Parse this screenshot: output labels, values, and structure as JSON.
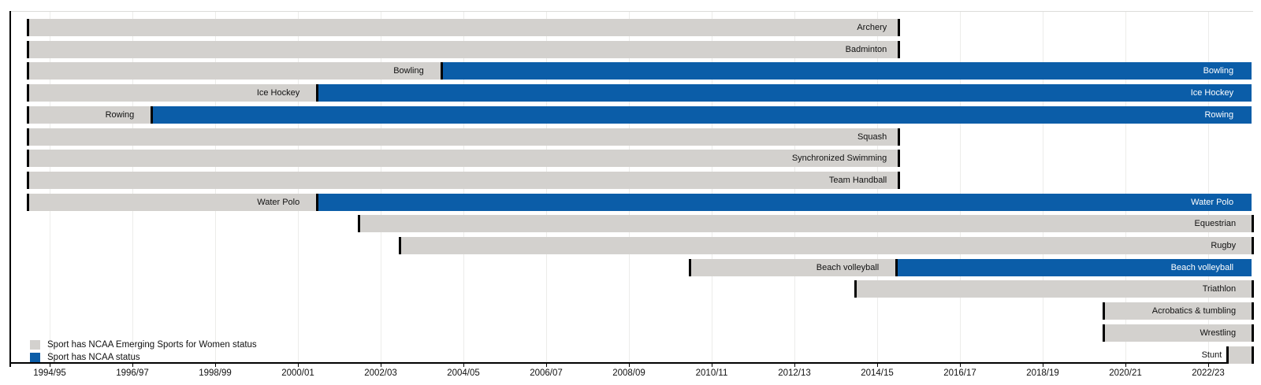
{
  "chart_data": {
    "type": "gantt",
    "description": "Timeline of NCAA Emerging Sports for Women status and NCAA championship status by sport and academic year",
    "colors": {
      "emerging": "#d3d1ce",
      "ncaa": "#0b5da8",
      "boundary": "#000000",
      "gridline": "#ececea",
      "background": "#ffffff"
    },
    "x_axis": {
      "range_start": 1994,
      "range_end": 2023.55,
      "grid": true,
      "ticks": [
        {
          "year": 1994.5,
          "label": "1994/95"
        },
        {
          "year": 1996.5,
          "label": "1996/97"
        },
        {
          "year": 1998.5,
          "label": "1998/99"
        },
        {
          "year": 2000.5,
          "label": "2000/01"
        },
        {
          "year": 2002.5,
          "label": "2002/03"
        },
        {
          "year": 2004.5,
          "label": "2004/05"
        },
        {
          "year": 2006.5,
          "label": "2006/07"
        },
        {
          "year": 2008.5,
          "label": "2008/09"
        },
        {
          "year": 2010.5,
          "label": "2010/11"
        },
        {
          "year": 2012.5,
          "label": "2012/13"
        },
        {
          "year": 2014.5,
          "label": "2014/15"
        },
        {
          "year": 2016.5,
          "label": "2016/17"
        },
        {
          "year": 2018.5,
          "label": "2018/19"
        },
        {
          "year": 2020.5,
          "label": "2020/21"
        },
        {
          "year": 2022.5,
          "label": "2022/23"
        }
      ]
    },
    "legend": {
      "position": "bottom-left-inside",
      "items": [
        {
          "label": "Sport has NCAA Emerging Sports for Women status",
          "status": "emerging",
          "color": "#d3d1ce"
        },
        {
          "label": "Sport has NCAA status",
          "status": "ncaa",
          "color": "#0b5da8"
        }
      ]
    },
    "rows": [
      {
        "sport": "Archery",
        "segments": [
          {
            "status": "emerging",
            "from": 1994,
            "to": 2015,
            "cap_right": true,
            "show_label": true
          }
        ]
      },
      {
        "sport": "Badminton",
        "segments": [
          {
            "status": "emerging",
            "from": 1994,
            "to": 2015,
            "cap_right": true,
            "show_label": true
          }
        ]
      },
      {
        "sport": "Bowling",
        "segments": [
          {
            "status": "emerging",
            "from": 1994,
            "to": 2004,
            "cap_right": false,
            "show_label": true
          },
          {
            "status": "ncaa",
            "from": 2004,
            "to": 2023.55,
            "cap_right": false,
            "show_label": true
          }
        ]
      },
      {
        "sport": "Ice Hockey",
        "segments": [
          {
            "status": "emerging",
            "from": 1994,
            "to": 2001,
            "cap_right": false,
            "show_label": true
          },
          {
            "status": "ncaa",
            "from": 2001,
            "to": 2023.55,
            "cap_right": false,
            "show_label": true
          }
        ]
      },
      {
        "sport": "Rowing",
        "segments": [
          {
            "status": "emerging",
            "from": 1994,
            "to": 1997,
            "cap_right": false,
            "show_label": true
          },
          {
            "status": "ncaa",
            "from": 1997,
            "to": 2023.55,
            "cap_right": false,
            "show_label": true
          }
        ]
      },
      {
        "sport": "Squash",
        "segments": [
          {
            "status": "emerging",
            "from": 1994,
            "to": 2015,
            "cap_right": true,
            "show_label": true
          }
        ]
      },
      {
        "sport": "Synchronized Swimming",
        "segments": [
          {
            "status": "emerging",
            "from": 1994,
            "to": 2015,
            "cap_right": true,
            "show_label": true
          }
        ]
      },
      {
        "sport": "Team Handball",
        "segments": [
          {
            "status": "emerging",
            "from": 1994,
            "to": 2015,
            "cap_right": true,
            "show_label": true
          }
        ]
      },
      {
        "sport": "Water Polo",
        "segments": [
          {
            "status": "emerging",
            "from": 1994,
            "to": 2001,
            "cap_right": false,
            "show_label": true
          },
          {
            "status": "ncaa",
            "from": 2001,
            "to": 2023.55,
            "cap_right": false,
            "show_label": true
          }
        ]
      },
      {
        "sport": "Equestrian",
        "segments": [
          {
            "status": "emerging",
            "from": 2002,
            "to": 2023.55,
            "cap_right": true,
            "show_label": true
          }
        ]
      },
      {
        "sport": "Rugby",
        "segments": [
          {
            "status": "emerging",
            "from": 2003,
            "to": 2023.55,
            "cap_right": true,
            "show_label": true
          }
        ]
      },
      {
        "sport": "Beach volleyball",
        "segments": [
          {
            "status": "emerging",
            "from": 2010,
            "to": 2015,
            "cap_right": false,
            "show_label": true
          },
          {
            "status": "ncaa",
            "from": 2015,
            "to": 2023.55,
            "cap_right": false,
            "show_label": true
          }
        ]
      },
      {
        "sport": "Triathlon",
        "segments": [
          {
            "status": "emerging",
            "from": 2014,
            "to": 2023.55,
            "cap_right": true,
            "show_label": true
          }
        ]
      },
      {
        "sport": "Acrobatics & tumbling",
        "segments": [
          {
            "status": "emerging",
            "from": 2020,
            "to": 2023.55,
            "cap_right": true,
            "show_label": true
          }
        ]
      },
      {
        "sport": "Wrestling",
        "segments": [
          {
            "status": "emerging",
            "from": 2020,
            "to": 2023.55,
            "cap_right": true,
            "show_label": true
          }
        ]
      },
      {
        "sport": "Stunt",
        "segments": [
          {
            "status": "emerging",
            "from": 2023,
            "to": 2023.55,
            "cap_right": true,
            "show_label": false
          }
        ],
        "label_outside": true
      }
    ]
  }
}
